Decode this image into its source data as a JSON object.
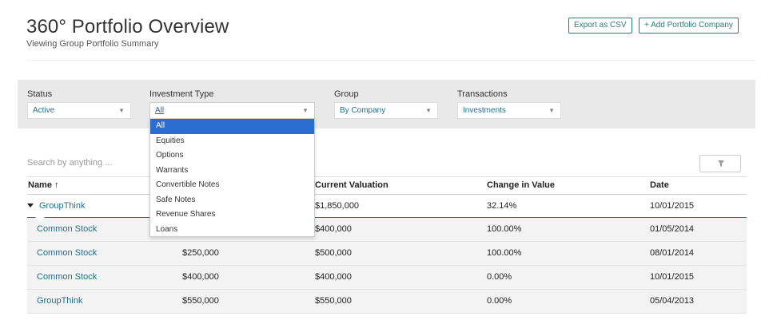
{
  "header": {
    "title": "360° Portfolio Overview",
    "subtitle": "Viewing Group Portfolio Summary",
    "export_label": "Export as CSV",
    "add_label": "+ Add Portfolio Company"
  },
  "filters": {
    "status": {
      "label": "Status",
      "value": "Active"
    },
    "investment_type": {
      "label": "Investment Type",
      "value": "All"
    },
    "group": {
      "label": "Group",
      "value": "By Company"
    },
    "transactions": {
      "label": "Transactions",
      "value": "Investments"
    }
  },
  "dropdown": {
    "options": [
      "All",
      "Equities",
      "Options",
      "Warrants",
      "Convertible Notes",
      "Safe Notes",
      "Revenue Shares",
      "Loans"
    ],
    "selected": "All"
  },
  "search": {
    "placeholder": "Search by anything ..."
  },
  "table": {
    "columns": [
      "Name ↑",
      "",
      "Current Valuation",
      "Change in Value",
      "Date"
    ],
    "group_row": {
      "name": "GroupThink",
      "invested": "",
      "current_valuation": "$1,850,000",
      "change": "32.14%",
      "date": "10/01/2015"
    },
    "rows": [
      {
        "name": "Common Stock",
        "invested": "",
        "current_valuation": "$400,000",
        "change": "100.00%",
        "date": "01/05/2014"
      },
      {
        "name": "Common Stock",
        "invested": "$250,000",
        "current_valuation": "$500,000",
        "change": "100.00%",
        "date": "08/01/2014"
      },
      {
        "name": "Common Stock",
        "invested": "$400,000",
        "current_valuation": "$400,000",
        "change": "0.00%",
        "date": "10/01/2015"
      },
      {
        "name": "GroupThink",
        "invested": "$550,000",
        "current_valuation": "$550,000",
        "change": "0.00%",
        "date": "05/04/2013"
      }
    ]
  },
  "colors": {
    "accent": "#1f6f8b",
    "selected": "#2b6dd1",
    "filter_bar": "#e9e9e9"
  }
}
